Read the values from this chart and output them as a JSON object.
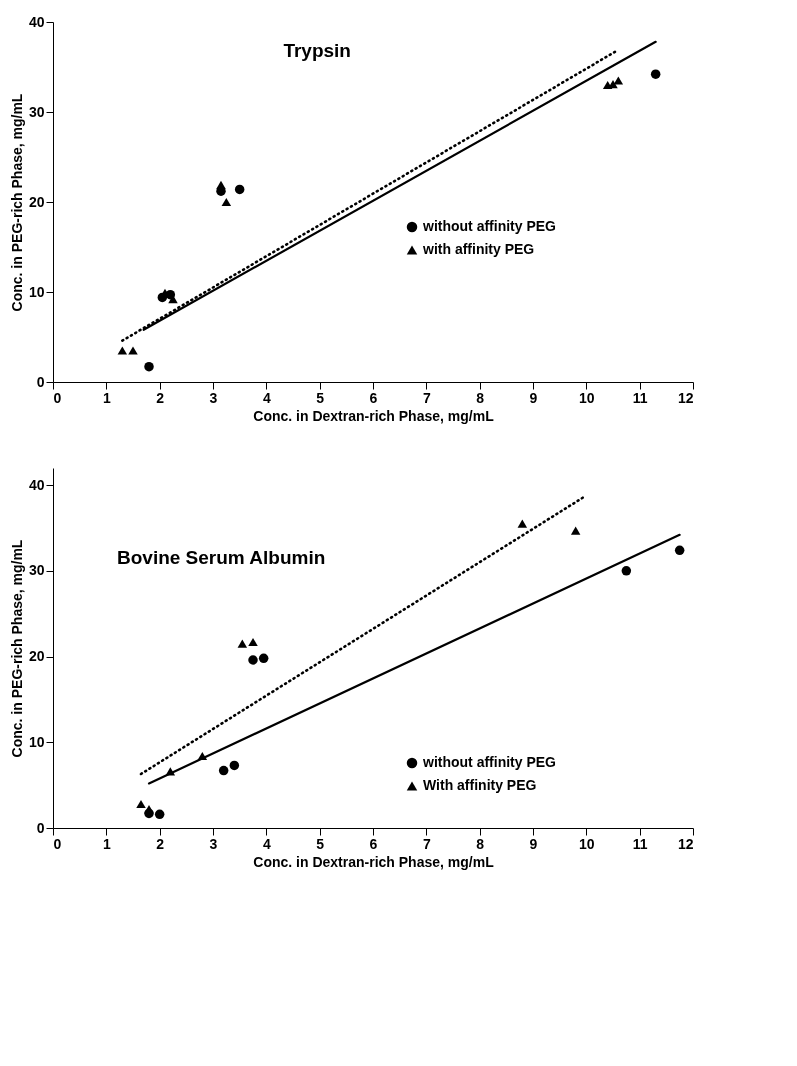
{
  "chart_data": [
    {
      "type": "scatter",
      "title": "Trypsin",
      "xlabel": "Conc. in Dextran-rich Phase, mg/mL",
      "ylabel": "Conc. in PEG-rich Phase, mg/mL",
      "xlim": [
        0,
        12
      ],
      "ylim": [
        0,
        40
      ],
      "xticks": [
        0,
        1,
        2,
        3,
        4,
        5,
        6,
        7,
        8,
        9,
        10,
        11,
        12
      ],
      "yticks": [
        0,
        10,
        20,
        30,
        40
      ],
      "grid": false,
      "legend": "right",
      "series": [
        {
          "name": "without affinity PEG",
          "marker": "circle",
          "color": "#000000",
          "x": [
            1.8,
            2.05,
            2.2,
            3.15,
            3.5,
            11.3
          ],
          "values": [
            1.7,
            9.4,
            9.7,
            21.2,
            21.4,
            34.2
          ]
        },
        {
          "name": "with affinity PEG",
          "marker": "triangle",
          "color": "#000000",
          "x": [
            1.3,
            1.5,
            2.1,
            2.25,
            3.15,
            3.25,
            10.4,
            10.5,
            10.6
          ],
          "values": [
            3.5,
            3.5,
            9.9,
            9.2,
            21.9,
            20.0,
            33.0,
            33.1,
            33.5
          ]
        },
        {
          "type": "line",
          "line_style": "solid",
          "color": "#000000",
          "x": [
            1.7,
            11.3
          ],
          "values": [
            5.8,
            37.8
          ]
        },
        {
          "type": "line",
          "line_style": "dotted",
          "color": "#000000",
          "x": [
            1.3,
            10.6
          ],
          "values": [
            4.6,
            36.9
          ]
        }
      ]
    },
    {
      "type": "scatter",
      "title": "Bovine Serum Albumin",
      "xlabel": "Conc. in Dextran-rich Phase, mg/mL",
      "ylabel": "Conc. in PEG-rich Phase, mg/mL",
      "xlim": [
        0,
        12
      ],
      "ylim": [
        0,
        42
      ],
      "xticks": [
        0,
        1,
        2,
        3,
        4,
        5,
        6,
        7,
        8,
        9,
        10,
        11,
        12
      ],
      "yticks": [
        0,
        10,
        20,
        30,
        40
      ],
      "grid": false,
      "legend": "bottom right",
      "series": [
        {
          "name": "without affinity PEG",
          "marker": "circle",
          "color": "#000000",
          "x": [
            1.8,
            2.0,
            3.2,
            3.4,
            3.75,
            3.95,
            10.75,
            11.75
          ],
          "values": [
            1.7,
            1.6,
            6.7,
            7.3,
            19.6,
            19.8,
            30.0,
            32.4
          ]
        },
        {
          "name": "With affinity PEG",
          "marker": "triangle",
          "color": "#000000",
          "x": [
            1.65,
            1.8,
            2.2,
            2.8,
            3.55,
            3.75,
            8.8,
            9.8
          ],
          "values": [
            2.8,
            2.2,
            6.6,
            8.4,
            21.5,
            21.7,
            35.5,
            34.7
          ]
        },
        {
          "type": "line",
          "line_style": "solid",
          "color": "#000000",
          "x": [
            1.8,
            11.75
          ],
          "values": [
            5.2,
            34.2
          ]
        },
        {
          "type": "line",
          "line_style": "dotted",
          "color": "#000000",
          "x": [
            1.65,
            9.95
          ],
          "values": [
            6.3,
            38.6
          ]
        }
      ]
    }
  ]
}
